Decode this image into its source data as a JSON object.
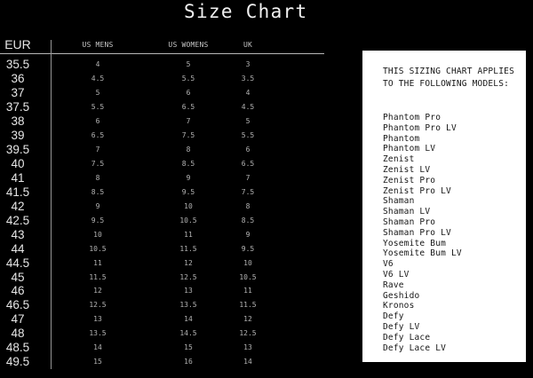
{
  "title": "Size Chart",
  "chart_data": {
    "type": "table",
    "title": "Size Chart",
    "columns": [
      "EUR",
      "US MENS",
      "US WOMENS",
      "UK"
    ],
    "rows": [
      [
        "35.5",
        "4",
        "5",
        "3"
      ],
      [
        "36",
        "4.5",
        "5.5",
        "3.5"
      ],
      [
        "37",
        "5",
        "6",
        "4"
      ],
      [
        "37.5",
        "5.5",
        "6.5",
        "4.5"
      ],
      [
        "38",
        "6",
        "7",
        "5"
      ],
      [
        "39",
        "6.5",
        "7.5",
        "5.5"
      ],
      [
        "39.5",
        "7",
        "8",
        "6"
      ],
      [
        "40",
        "7.5",
        "8.5",
        "6.5"
      ],
      [
        "41",
        "8",
        "9",
        "7"
      ],
      [
        "41.5",
        "8.5",
        "9.5",
        "7.5"
      ],
      [
        "42",
        "9",
        "10",
        "8"
      ],
      [
        "42.5",
        "9.5",
        "10.5",
        "8.5"
      ],
      [
        "43",
        "10",
        "11",
        "9"
      ],
      [
        "44",
        "10.5",
        "11.5",
        "9.5"
      ],
      [
        "44.5",
        "11",
        "12",
        "10"
      ],
      [
        "45",
        "11.5",
        "12.5",
        "10.5"
      ],
      [
        "46",
        "12",
        "13",
        "11"
      ],
      [
        "46.5",
        "12.5",
        "13.5",
        "11.5"
      ],
      [
        "47",
        "13",
        "14",
        "12"
      ],
      [
        "48",
        "13.5",
        "14.5",
        "12.5"
      ],
      [
        "48.5",
        "14",
        "15",
        "13"
      ],
      [
        "49.5",
        "15",
        "16",
        "14"
      ]
    ]
  },
  "panel": {
    "heading_line1": "THIS SIZING CHART APPLIES",
    "heading_line2": "TO THE FOLLOWING MODELS:",
    "models": [
      "Phantom Pro",
      "Phantom Pro LV",
      "Phantom",
      "Phantom LV",
      "Zenist",
      "Zenist LV",
      "Zenist Pro",
      "Zenist Pro LV",
      "Shaman",
      "Shaman LV",
      "Shaman Pro",
      "Shaman Pro LV",
      "Yosemite Bum",
      "Yosemite Bum LV",
      "V6",
      "V6 LV",
      "Rave",
      "Geshido",
      "Kronos",
      "Defy",
      "Defy LV",
      "Defy Lace",
      "Defy Lace LV"
    ]
  },
  "colors": {
    "background": "#000000",
    "title_text": "#f2f2f2",
    "eur_text": "#e6e6e6",
    "size_text": "#b3b3b3",
    "column_header_text": "#c4c4c4",
    "horizontal_rule": "#b7b7b7",
    "vertical_rule": "#969696",
    "panel_background": "#ffffff",
    "panel_text": "#161616"
  }
}
